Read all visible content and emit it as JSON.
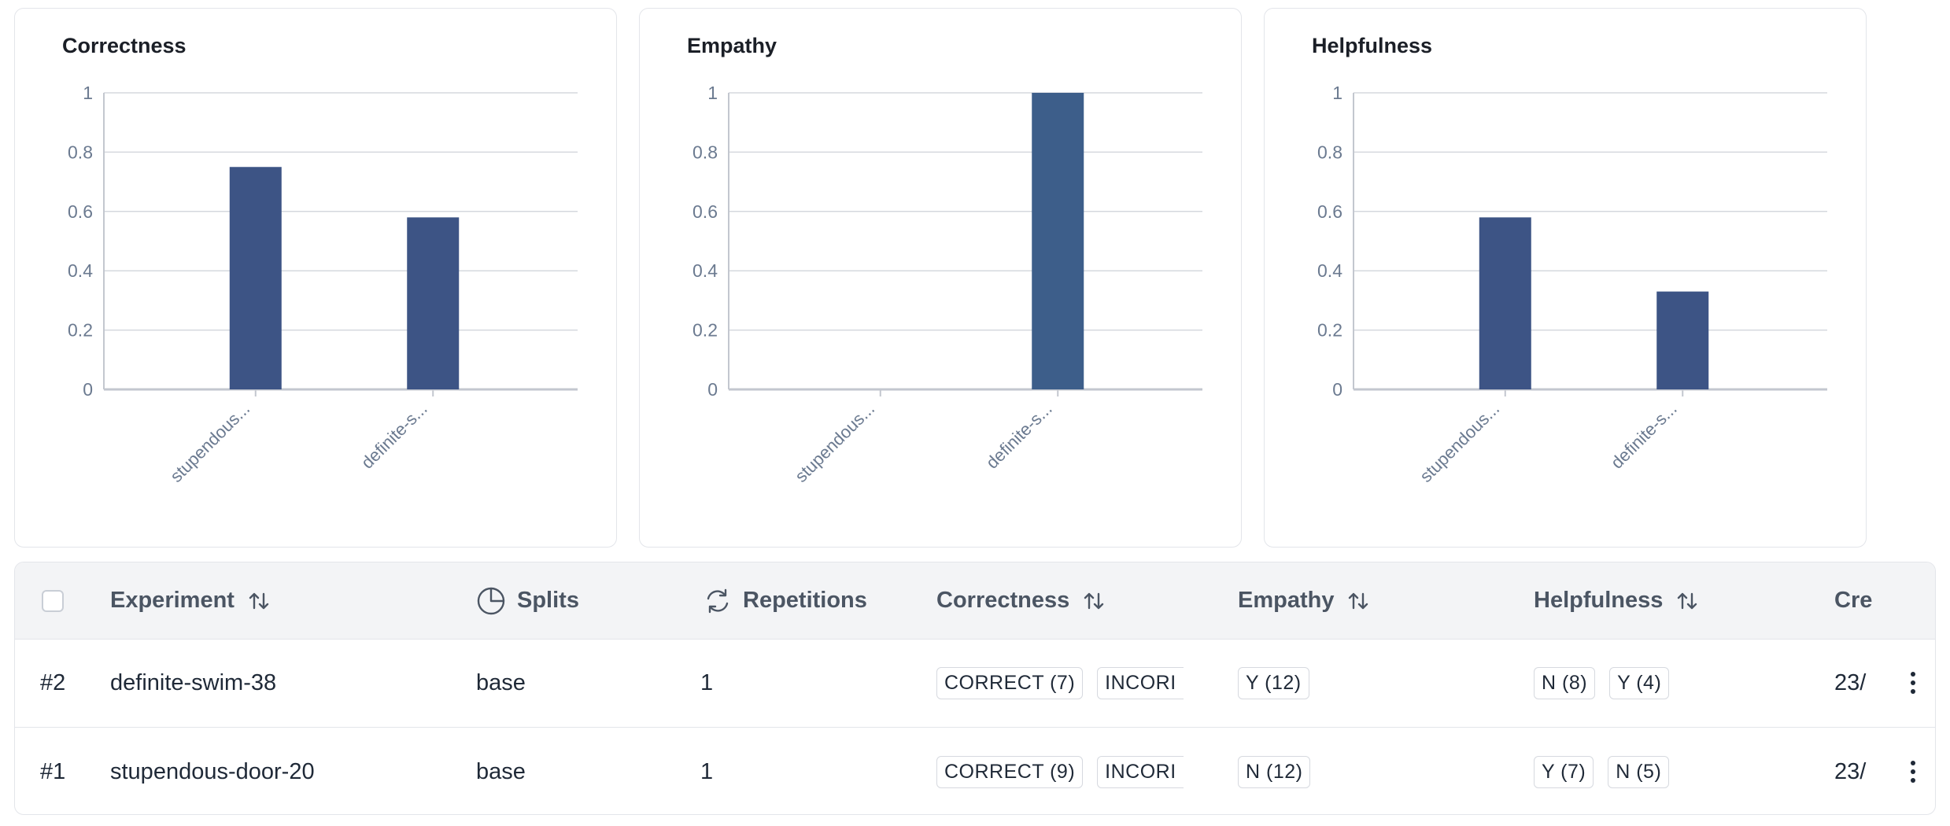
{
  "charts": [
    {
      "title": "Correctness",
      "categories": [
        "stupendous...",
        "definite-s..."
      ],
      "values": [
        0.75,
        0.58
      ]
    },
    {
      "title": "Empathy",
      "categories": [
        "stupendous...",
        "definite-s..."
      ],
      "values": [
        0,
        1
      ]
    },
    {
      "title": "Helpfulness",
      "categories": [
        "stupendous...",
        "definite-s..."
      ],
      "values": [
        0.58,
        0.33
      ]
    }
  ],
  "chart_data": [
    {
      "type": "bar",
      "title": "Correctness",
      "categories": [
        "stupendous...",
        "definite-s..."
      ],
      "values": [
        0.75,
        0.58
      ],
      "ylim": [
        0,
        1
      ],
      "yticks": [
        "0",
        "0.2",
        "0.4",
        "0.6",
        "0.8",
        "1"
      ],
      "grid": true,
      "color": "#3d5485"
    },
    {
      "type": "bar",
      "title": "Empathy",
      "categories": [
        "stupendous...",
        "definite-s..."
      ],
      "values": [
        0,
        1
      ],
      "ylim": [
        0,
        1
      ],
      "yticks": [
        "0",
        "0.2",
        "0.4",
        "0.6",
        "0.8",
        "1"
      ],
      "grid": true,
      "color": "#3d5e8a"
    },
    {
      "type": "bar",
      "title": "Helpfulness",
      "categories": [
        "stupendous...",
        "definite-s..."
      ],
      "values": [
        0.58,
        0.33
      ],
      "ylim": [
        0,
        1
      ],
      "yticks": [
        "0",
        "0.2",
        "0.4",
        "0.6",
        "0.8",
        "1"
      ],
      "grid": true,
      "color": "#3d5485"
    }
  ],
  "table": {
    "headers": {
      "experiment": "Experiment",
      "splits": "Splits",
      "repetitions": "Repetitions",
      "correctness": "Correctness",
      "empathy": "Empathy",
      "helpfulness": "Helpfulness",
      "created": "Cre"
    },
    "rows": [
      {
        "id": "#2",
        "experiment": "definite-swim-38",
        "splits": "base",
        "repetitions": "1",
        "correctness": [
          "CORRECT (7)",
          "INCORI"
        ],
        "empathy": [
          "Y (12)"
        ],
        "helpfulness": [
          "N (8)",
          "Y (4)"
        ],
        "created": "23/"
      },
      {
        "id": "#1",
        "experiment": "stupendous-door-20",
        "splits": "base",
        "repetitions": "1",
        "correctness": [
          "CORRECT (9)",
          "INCORI"
        ],
        "empathy": [
          "N (12)"
        ],
        "helpfulness": [
          "Y (7)",
          "N (5)"
        ],
        "created": "23/"
      }
    ]
  },
  "colors": {
    "bar": "#3d5485",
    "bar_alt": "#3d5e8a",
    "grid": "#d5d8de",
    "axis": "#c3c7cf"
  },
  "icons": {
    "sort": "sort-arrows-icon",
    "splits": "pie-chart-icon",
    "repetitions": "refresh-icon",
    "row_menu": "kebab-menu-icon"
  }
}
